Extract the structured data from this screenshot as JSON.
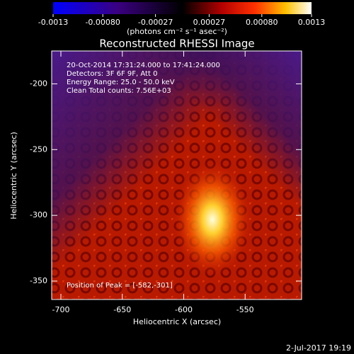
{
  "chart_data": {
    "type": "image",
    "title": "Reconstructed RHESSI Image",
    "x_label": "Heliocentric X (arcsec)",
    "y_label": "Heliocentric Y (arcsec)",
    "xlim": [
      -707.5,
      -504
    ],
    "ylim": [
      -364,
      -175
    ],
    "xticks": [
      -700,
      -650,
      -600,
      -550
    ],
    "yticks": [
      -200,
      -250,
      -300,
      -350
    ],
    "colorbar_label": "(photons cm⁻² s⁻¹ asec⁻²)",
    "clim": [
      -0.0013,
      0.0013
    ],
    "cticks": [
      {
        "value": -0.0013,
        "label": "-0.0013"
      },
      {
        "value": -0.0008,
        "label": "-0.00080"
      },
      {
        "value": -0.00027,
        "label": "-0.00027"
      },
      {
        "value": 0.00027,
        "label": "0.00027"
      },
      {
        "value": 0.0008,
        "label": "0.00080"
      },
      {
        "value": 0.0013,
        "label": "0.0013"
      }
    ],
    "annotations": [
      "20-Oct-2014 17:31:24.000 to 17:41:24.000",
      "Detectors: 3F 6F 9F, Att 0",
      "Energy Range: 25.0 - 50.0 keV",
      "Clean     Total counts: 7.56E+03"
    ],
    "peak_label": "Position of Peak = [-582,-301]",
    "timestamp": "2-Jul-2017 19:19"
  }
}
